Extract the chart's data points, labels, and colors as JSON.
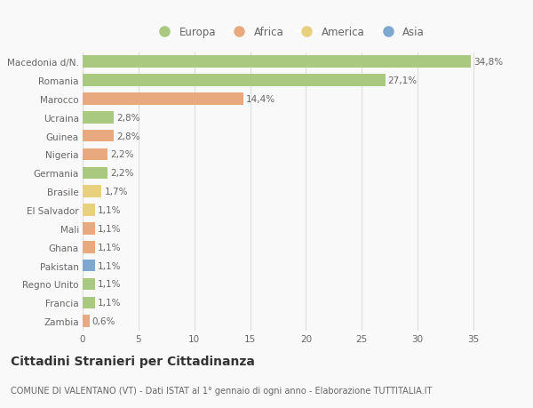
{
  "countries": [
    "Macedonia d/N.",
    "Romania",
    "Marocco",
    "Ucraina",
    "Guinea",
    "Nigeria",
    "Germania",
    "Brasile",
    "El Salvador",
    "Mali",
    "Ghana",
    "Pakistan",
    "Regno Unito",
    "Francia",
    "Zambia"
  ],
  "values": [
    34.8,
    27.1,
    14.4,
    2.8,
    2.8,
    2.2,
    2.2,
    1.7,
    1.1,
    1.1,
    1.1,
    1.1,
    1.1,
    1.1,
    0.6
  ],
  "labels": [
    "34,8%",
    "27,1%",
    "14,4%",
    "2,8%",
    "2,8%",
    "2,2%",
    "2,2%",
    "1,7%",
    "1,1%",
    "1,1%",
    "1,1%",
    "1,1%",
    "1,1%",
    "1,1%",
    "0,6%"
  ],
  "continents": [
    "Europa",
    "Europa",
    "Africa",
    "Europa",
    "Africa",
    "Africa",
    "Europa",
    "America",
    "America",
    "Africa",
    "Africa",
    "Asia",
    "Europa",
    "Europa",
    "Africa"
  ],
  "continent_colors": {
    "Europa": "#a8c97f",
    "Africa": "#e8a97e",
    "America": "#e8d07e",
    "Asia": "#7ea8d0"
  },
  "legend_order": [
    "Europa",
    "Africa",
    "America",
    "Asia"
  ],
  "xlim": [
    0,
    37
  ],
  "xticks": [
    0,
    5,
    10,
    15,
    20,
    25,
    30,
    35
  ],
  "title": "Cittadini Stranieri per Cittadinanza",
  "subtitle": "COMUNE DI VALENTANO (VT) - Dati ISTAT al 1° gennaio di ogni anno - Elaborazione TUTTITALIA.IT",
  "bg_color": "#f9f9f9",
  "grid_color": "#dddddd",
  "bar_height": 0.65,
  "label_fontsize": 7.5,
  "tick_fontsize": 7.5,
  "title_fontsize": 10,
  "subtitle_fontsize": 7
}
